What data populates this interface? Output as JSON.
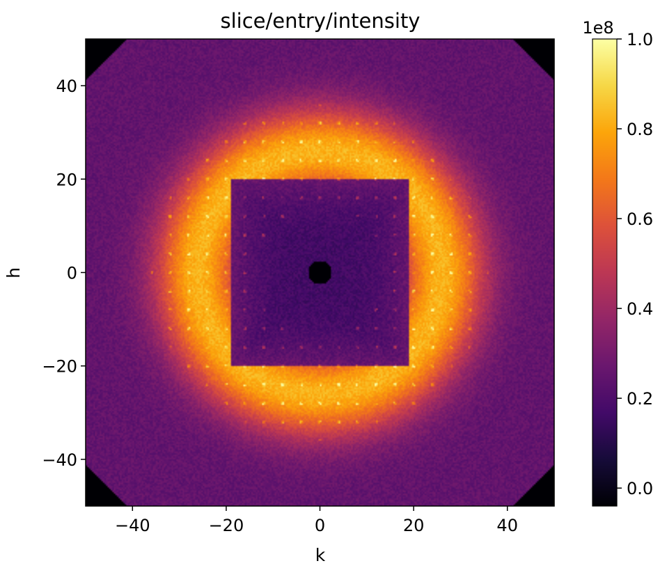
{
  "chart_data": {
    "type": "heatmap",
    "title": "slice/entry/intensity",
    "xlabel": "k",
    "ylabel": "h",
    "xlim": [
      -50,
      50
    ],
    "ylim": [
      -50,
      50
    ],
    "xticks": [
      -40,
      -20,
      0,
      20,
      40
    ],
    "yticks": [
      -40,
      -20,
      0,
      20,
      40
    ],
    "xtick_labels": [
      "−40",
      "−20",
      "0",
      "20",
      "40"
    ],
    "ytick_labels": [
      "−40",
      "−20",
      "0",
      "20",
      "40"
    ],
    "colormap": "inferno",
    "colorbar": {
      "range": [
        -0.04,
        1.0
      ],
      "ticks": [
        0.0,
        0.2,
        0.4,
        0.6,
        0.8,
        1.0
      ],
      "tick_labels": [
        "0.0",
        "0.2",
        "0.4",
        "0.6",
        "0.8",
        "1.0"
      ],
      "multiplier_label": "1e8"
    },
    "grid": false,
    "features": {
      "central_masked_hole": {
        "center": [
          0,
          0
        ],
        "radius": 2.5
      },
      "dark_inner_region_half_width": 13,
      "bright_ring_radius": 26,
      "outer_background_level": 0.28
    }
  }
}
